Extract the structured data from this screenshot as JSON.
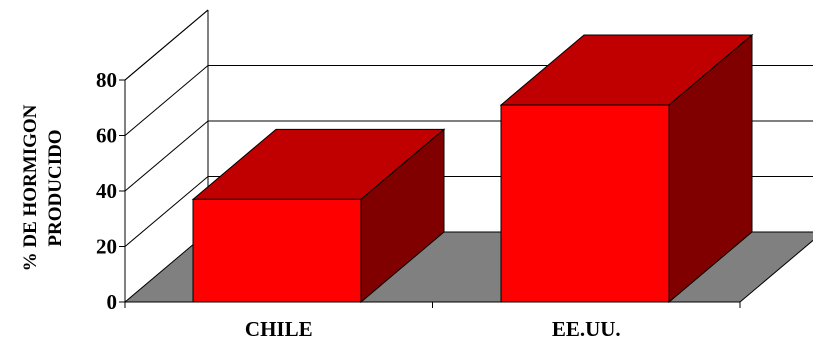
{
  "chart_data": {
    "type": "bar",
    "categories": [
      "CHILE",
      "EE.UU."
    ],
    "values": [
      37,
      71
    ],
    "ylabel_lines": [
      "% DE HORMIGON",
      "PRODUCIDO"
    ],
    "ylim": [
      0,
      80
    ],
    "yticks": [
      "0",
      "20",
      "40",
      "60",
      "80"
    ],
    "grid": true,
    "three_d": true,
    "colors": {
      "bar_front": "#ff0000",
      "bar_top": "#c00000",
      "bar_side": "#800000",
      "floor": "#808080"
    }
  }
}
